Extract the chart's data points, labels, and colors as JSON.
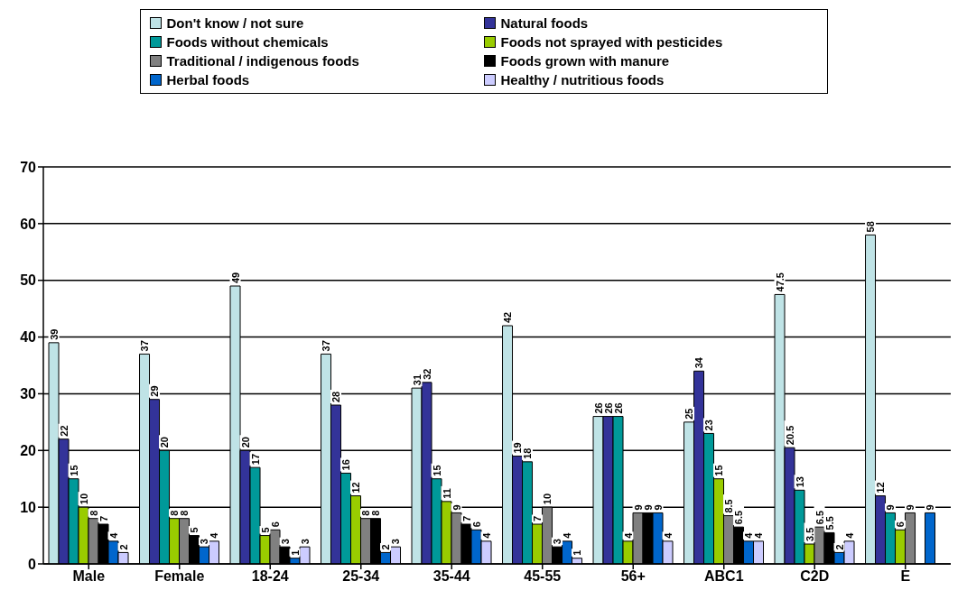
{
  "chart_data": {
    "type": "bar",
    "categories": [
      "Male",
      "Female",
      "18-24",
      "25-34",
      "35-44",
      "45-55",
      "56+",
      "ABC1",
      "C2D",
      "E"
    ],
    "series": [
      {
        "name": "Don't know / not sure",
        "color": "#bfe3e6",
        "values": [
          39,
          37,
          49,
          37,
          31,
          42,
          26,
          25,
          47.5,
          58
        ]
      },
      {
        "name": "Natural foods",
        "color": "#333399",
        "values": [
          22,
          29,
          20,
          28,
          32,
          19,
          26,
          34,
          20.5,
          12
        ]
      },
      {
        "name": "Foods without chemicals",
        "color": "#009999",
        "values": [
          15,
          20,
          17,
          16,
          15,
          18,
          26,
          23,
          13,
          9
        ]
      },
      {
        "name": "Foods not sprayed with pesticides",
        "color": "#99cc00",
        "values": [
          10,
          8,
          5,
          12,
          11,
          7,
          4,
          15,
          3.5,
          6
        ]
      },
      {
        "name": "Traditional / indigenous foods",
        "color": "#808080",
        "values": [
          8,
          8,
          6,
          8,
          9,
          10,
          9,
          8.5,
          6.5,
          9
        ]
      },
      {
        "name": "Foods grown with manure",
        "color": "#000000",
        "values": [
          7,
          5,
          3,
          8,
          7,
          3,
          9,
          6.5,
          5.5,
          null
        ]
      },
      {
        "name": "Herbal foods",
        "color": "#0066cc",
        "values": [
          4,
          3,
          1,
          2,
          6,
          4,
          9,
          4,
          2,
          9
        ]
      },
      {
        "name": "Healthy / nutritious foods",
        "color": "#ccccff",
        "values": [
          2,
          4,
          3,
          3,
          4,
          1,
          4,
          4,
          4,
          null
        ]
      }
    ],
    "ylim": [
      0,
      70
    ],
    "yticks": [
      0,
      10,
      20,
      30,
      40,
      50,
      60,
      70
    ],
    "grid": "y",
    "legend": "top",
    "data_labels": true
  }
}
